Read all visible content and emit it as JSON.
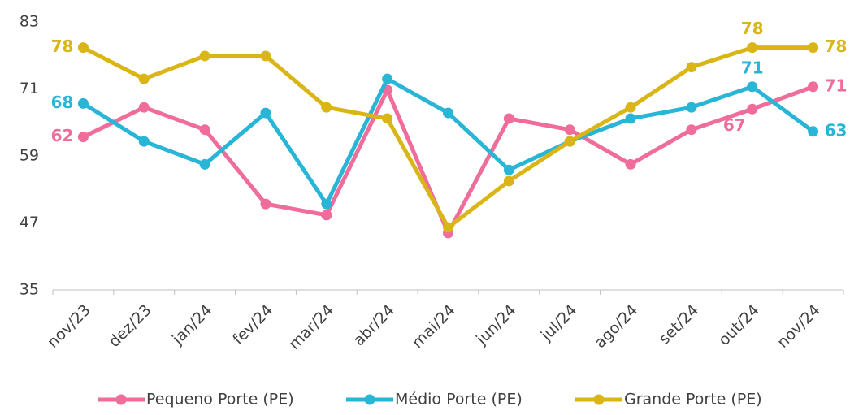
{
  "chart_data": {
    "type": "line",
    "categories": [
      "nov/23",
      "dez/23",
      "jan/24",
      "fev/24",
      "mar/24",
      "abr/24",
      "mai/24",
      "jun/24",
      "jul/24",
      "ago/24",
      "set/24",
      "out/24",
      "nov/24"
    ],
    "ylim": [
      35,
      83
    ],
    "yticks": [
      35,
      47,
      59,
      71,
      83
    ],
    "grid": false,
    "legend": "bottom",
    "series": [
      {
        "name": "Pequeno Porte (PE)",
        "color": "#f06c9b",
        "values": [
          62.4,
          67.7,
          63.7,
          50.4,
          48.4,
          70.8,
          45.2,
          65.7,
          63.7,
          57.5,
          63.7,
          67.4,
          71.4
        ],
        "value_labels": [
          "62",
          null,
          null,
          null,
          null,
          null,
          null,
          null,
          null,
          null,
          null,
          "67",
          "71"
        ]
      },
      {
        "name": "Médio Porte (PE)",
        "color": "#29b6d6",
        "values": [
          68.4,
          61.6,
          57.5,
          66.7,
          50.4,
          72.8,
          66.7,
          56.5,
          61.6,
          65.7,
          67.7,
          71.4,
          63.4
        ],
        "value_labels": [
          "68",
          null,
          null,
          null,
          null,
          null,
          null,
          null,
          null,
          null,
          null,
          "71",
          "63"
        ]
      },
      {
        "name": "Grande Porte (PE)",
        "color": "#d9b616",
        "values": [
          78.4,
          72.8,
          76.9,
          76.9,
          67.7,
          65.7,
          46.2,
          54.5,
          61.6,
          67.7,
          74.9,
          78.4,
          78.4
        ],
        "value_labels": [
          "78",
          null,
          null,
          null,
          null,
          null,
          null,
          null,
          null,
          null,
          null,
          "78",
          "78"
        ]
      }
    ]
  }
}
